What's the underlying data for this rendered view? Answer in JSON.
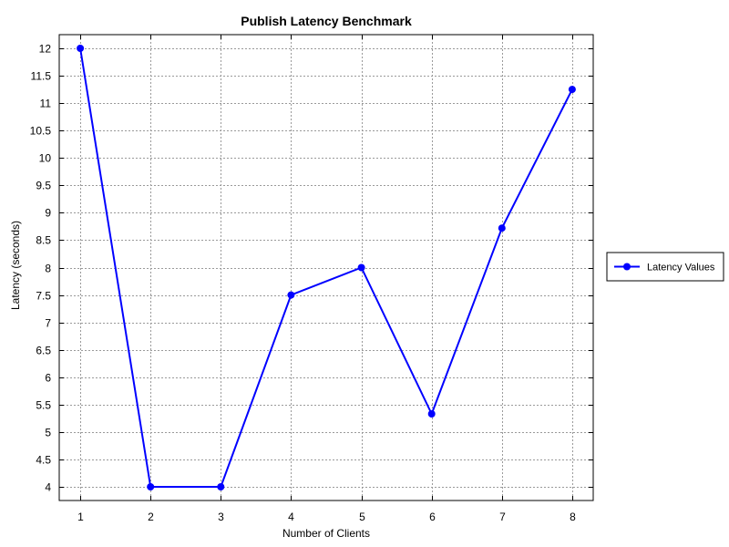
{
  "chart_data": {
    "type": "line",
    "title": "Publish Latency Benchmark",
    "xlabel": "Number of Clients",
    "ylabel": "Latency (seconds)",
    "x": [
      1,
      2,
      3,
      4,
      5,
      6,
      7,
      8
    ],
    "xticks": [
      "1",
      "2",
      "3",
      "4",
      "5",
      "6",
      "7",
      "8"
    ],
    "yticks": [
      "4",
      "4.5",
      "5",
      "5.5",
      "6",
      "6.5",
      "7",
      "7.5",
      "8",
      "8.5",
      "9",
      "9.5",
      "10",
      "10.5",
      "11",
      "11.5",
      "12"
    ],
    "ylim": [
      3.75,
      12.25
    ],
    "xlim": [
      0.7,
      8.3
    ],
    "grid": true,
    "legend_position": "right",
    "series": [
      {
        "name": "Latency Values",
        "color": "#0000ff",
        "values": [
          12.0,
          4.0,
          4.0,
          7.5,
          8.0,
          5.33,
          8.72,
          11.25
        ]
      }
    ]
  }
}
